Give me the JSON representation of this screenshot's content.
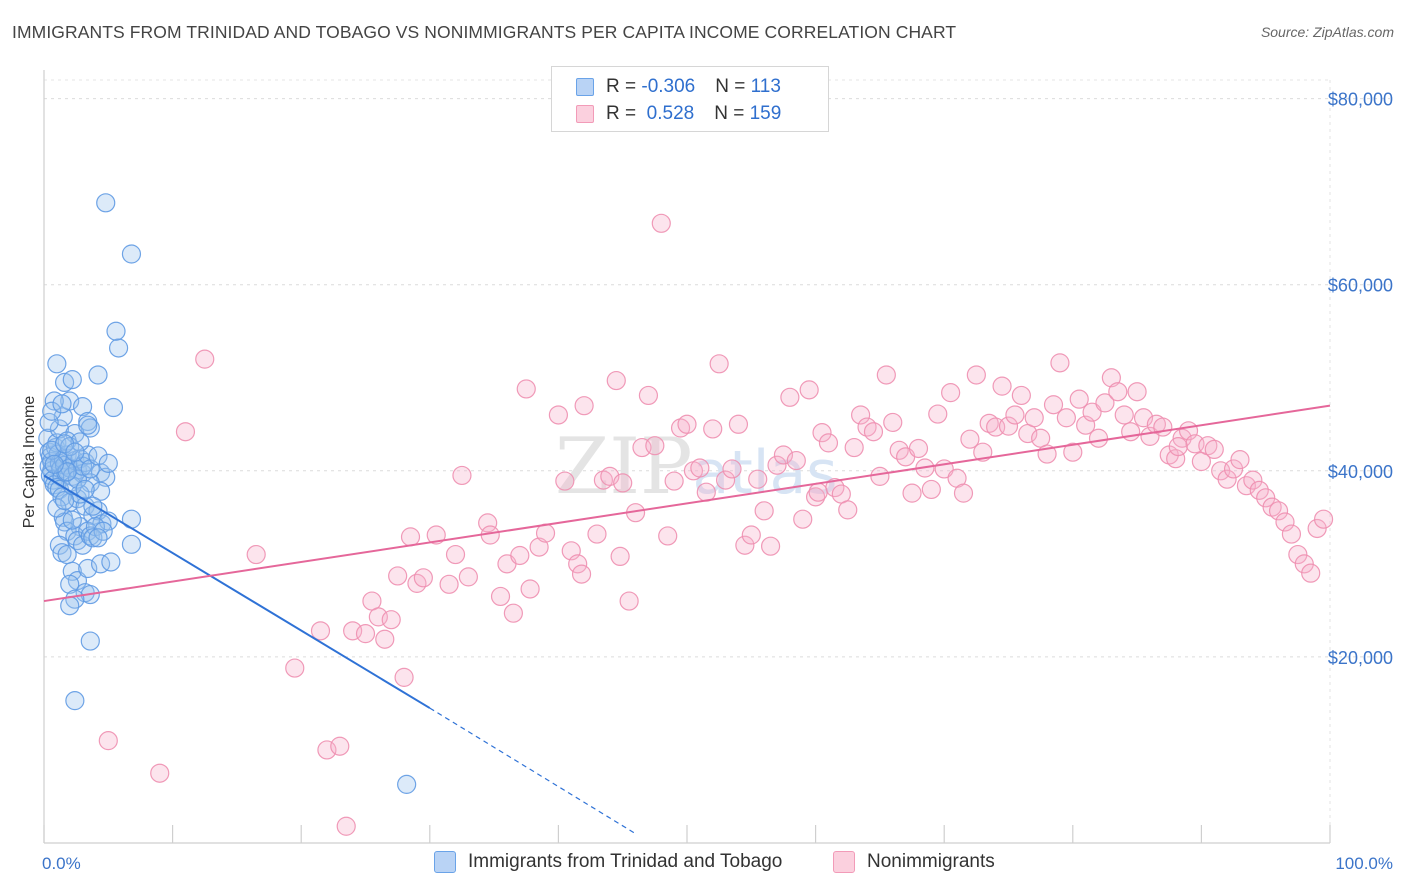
{
  "title": "IMMIGRANTS FROM TRINIDAD AND TOBAGO VS NONIMMIGRANTS PER CAPITA INCOME CORRELATION CHART",
  "source": "Source: ZipAtlas.com",
  "colors": {
    "blue": "#6aa3e8",
    "blue_line": "#2f72d6",
    "pink": "#f29bb8",
    "pink_line": "#e5679a",
    "axis_text": "#3b74c9"
  },
  "legend": [
    {
      "r_label": "R = ",
      "r_value": "-0.306",
      "n_label": "N = ",
      "n_value": "113"
    },
    {
      "r_label": "R = ",
      "r_value": " 0.528",
      "n_label": "N = ",
      "n_value": "159"
    }
  ],
  "chart_data": {
    "type": "scatter",
    "title": "IMMIGRANTS FROM TRINIDAD AND TOBAGO VS NONIMMIGRANTS PER CAPITA INCOME CORRELATION CHART",
    "xlabel": "",
    "ylabel": "Per Capita Income",
    "xlim": [
      0,
      100
    ],
    "ylim": [
      0,
      82000
    ],
    "x_tick_labels": [
      "0.0%",
      "100.0%"
    ],
    "y_ticks": [
      20000,
      40000,
      60000,
      80000
    ],
    "y_tick_labels": [
      "$20,000",
      "$40,000",
      "$60,000",
      "$80,000"
    ],
    "grid": true,
    "legend_position": "top-center",
    "series": [
      {
        "name": "Immigrants from Trinidad and Tobago",
        "color": "#6aa3e8",
        "trend": {
          "x0": 0,
          "y0": 39500,
          "x1": 30,
          "y1": 14500,
          "dash_to_x": 46,
          "dash_to_y": 1000
        },
        "points": [
          [
            0.3,
            43500
          ],
          [
            0.4,
            42000
          ],
          [
            0.5,
            41500
          ],
          [
            0.4,
            40500
          ],
          [
            0.6,
            40000
          ],
          [
            0.5,
            39500
          ],
          [
            0.7,
            39000
          ],
          [
            0.8,
            38500
          ],
          [
            0.6,
            41000
          ],
          [
            0.9,
            42500
          ],
          [
            1.0,
            43000
          ],
          [
            1.1,
            41800
          ],
          [
            1.2,
            40800
          ],
          [
            1.3,
            40200
          ],
          [
            1.4,
            39300
          ],
          [
            1.0,
            38200
          ],
          [
            1.5,
            41200
          ],
          [
            1.6,
            40600
          ],
          [
            1.7,
            39800
          ],
          [
            1.8,
            41700
          ],
          [
            2.0,
            40300
          ],
          [
            2.2,
            39400
          ],
          [
            2.4,
            41100
          ],
          [
            2.6,
            40100
          ],
          [
            2.8,
            41300
          ],
          [
            3.0,
            39700
          ],
          [
            3.2,
            40900
          ],
          [
            1.2,
            44500
          ],
          [
            1.5,
            45800
          ],
          [
            2.0,
            47500
          ],
          [
            0.8,
            47500
          ],
          [
            1.0,
            51500
          ],
          [
            1.6,
            49500
          ],
          [
            2.2,
            49800
          ],
          [
            3.0,
            46900
          ],
          [
            3.4,
            45300
          ],
          [
            3.6,
            44600
          ],
          [
            2.4,
            44000
          ],
          [
            1.8,
            43200
          ],
          [
            0.6,
            42200
          ],
          [
            1.2,
            38000
          ],
          [
            1.4,
            37200
          ],
          [
            2.0,
            36600
          ],
          [
            2.6,
            37000
          ],
          [
            3.2,
            36200
          ],
          [
            3.8,
            35200
          ],
          [
            4.2,
            35700
          ],
          [
            4.5,
            34300
          ],
          [
            5.0,
            34600
          ],
          [
            2.8,
            34000
          ],
          [
            1.5,
            35000
          ],
          [
            1.6,
            34500
          ],
          [
            1.8,
            33500
          ],
          [
            2.4,
            33000
          ],
          [
            2.6,
            32500
          ],
          [
            3.0,
            32000
          ],
          [
            3.4,
            33500
          ],
          [
            3.6,
            33000
          ],
          [
            4.0,
            34000
          ],
          [
            3.8,
            32800
          ],
          [
            1.2,
            32000
          ],
          [
            1.4,
            31200
          ],
          [
            1.8,
            31000
          ],
          [
            2.2,
            29200
          ],
          [
            2.6,
            28200
          ],
          [
            2.0,
            27800
          ],
          [
            3.2,
            26900
          ],
          [
            3.6,
            26700
          ],
          [
            2.4,
            26200
          ],
          [
            2.0,
            25500
          ],
          [
            3.4,
            29500
          ],
          [
            4.4,
            30000
          ],
          [
            5.2,
            30200
          ],
          [
            6.8,
            34800
          ],
          [
            6.8,
            32100
          ],
          [
            3.6,
            21700
          ],
          [
            2.4,
            15300
          ],
          [
            4.2,
            50300
          ],
          [
            5.4,
            46800
          ],
          [
            3.4,
            44900
          ],
          [
            4.4,
            39800
          ],
          [
            4.8,
            39300
          ],
          [
            3.6,
            38700
          ],
          [
            4.4,
            37800
          ],
          [
            2.8,
            37500
          ],
          [
            3.8,
            36200
          ],
          [
            4.6,
            33500
          ],
          [
            4.2,
            32800
          ],
          [
            5.8,
            53200
          ],
          [
            5.6,
            55000
          ],
          [
            4.8,
            68800
          ],
          [
            6.8,
            63300
          ],
          [
            28.2,
            6300
          ],
          [
            1.0,
            36000
          ],
          [
            1.6,
            36800
          ],
          [
            2.2,
            38400
          ],
          [
            2.6,
            39100
          ],
          [
            3.0,
            40500
          ],
          [
            3.4,
            41700
          ],
          [
            2.0,
            42600
          ],
          [
            2.8,
            43100
          ],
          [
            0.4,
            45200
          ],
          [
            0.6,
            46400
          ],
          [
            1.4,
            47200
          ],
          [
            3.2,
            38000
          ],
          [
            2.2,
            34700
          ],
          [
            1.8,
            39900
          ],
          [
            0.8,
            40700
          ],
          [
            1.6,
            42900
          ],
          [
            2.4,
            42000
          ],
          [
            3.6,
            40200
          ],
          [
            4.2,
            41600
          ],
          [
            5.0,
            40800
          ]
        ]
      },
      {
        "name": "Nonimmigrants",
        "color": "#f29bb8",
        "trend": {
          "x0": 0,
          "y0": 26000,
          "x1": 100,
          "y1": 47000
        },
        "points": [
          [
            5.0,
            11000
          ],
          [
            9.0,
            7500
          ],
          [
            11.0,
            44200
          ],
          [
            12.5,
            52000
          ],
          [
            16.5,
            31000
          ],
          [
            19.5,
            18800
          ],
          [
            21.5,
            22800
          ],
          [
            22.0,
            10000
          ],
          [
            23.0,
            10400
          ],
          [
            23.5,
            1800
          ],
          [
            24.0,
            22800
          ],
          [
            25.0,
            22500
          ],
          [
            25.5,
            26000
          ],
          [
            26.0,
            24300
          ],
          [
            26.5,
            21900
          ],
          [
            27.0,
            24000
          ],
          [
            27.5,
            28700
          ],
          [
            28.0,
            17800
          ],
          [
            28.5,
            32900
          ],
          [
            29.0,
            27900
          ],
          [
            29.5,
            28500
          ],
          [
            30.5,
            33100
          ],
          [
            31.5,
            27800
          ],
          [
            32.0,
            31000
          ],
          [
            32.5,
            39500
          ],
          [
            33.0,
            28600
          ],
          [
            34.5,
            34400
          ],
          [
            34.7,
            33100
          ],
          [
            35.5,
            26500
          ],
          [
            36.0,
            30000
          ],
          [
            36.5,
            24700
          ],
          [
            37.0,
            30900
          ],
          [
            37.5,
            48800
          ],
          [
            37.8,
            27300
          ],
          [
            38.5,
            31800
          ],
          [
            39.0,
            33300
          ],
          [
            40.0,
            46000
          ],
          [
            40.5,
            38900
          ],
          [
            41.0,
            31400
          ],
          [
            41.5,
            30000
          ],
          [
            41.8,
            28900
          ],
          [
            42.0,
            47000
          ],
          [
            43.0,
            33200
          ],
          [
            43.5,
            39000
          ],
          [
            44.0,
            39400
          ],
          [
            44.5,
            49700
          ],
          [
            44.8,
            30800
          ],
          [
            45.0,
            38700
          ],
          [
            45.5,
            26000
          ],
          [
            46.0,
            35500
          ],
          [
            46.5,
            42500
          ],
          [
            47.0,
            48100
          ],
          [
            47.5,
            42700
          ],
          [
            48.0,
            66600
          ],
          [
            48.5,
            33000
          ],
          [
            49.0,
            38900
          ],
          [
            49.5,
            44600
          ],
          [
            50.0,
            45000
          ],
          [
            50.5,
            40000
          ],
          [
            51.0,
            40300
          ],
          [
            51.5,
            37700
          ],
          [
            52.0,
            44500
          ],
          [
            52.5,
            51500
          ],
          [
            53.0,
            39000
          ],
          [
            53.5,
            40200
          ],
          [
            54.0,
            45000
          ],
          [
            54.5,
            32000
          ],
          [
            55.0,
            33100
          ],
          [
            55.5,
            39100
          ],
          [
            56.0,
            35700
          ],
          [
            56.5,
            31900
          ],
          [
            57.0,
            40600
          ],
          [
            57.5,
            41700
          ],
          [
            58.0,
            47900
          ],
          [
            58.5,
            41100
          ],
          [
            59.0,
            34800
          ],
          [
            59.5,
            48700
          ],
          [
            60.0,
            37200
          ],
          [
            60.5,
            44100
          ],
          [
            61.0,
            43000
          ],
          [
            61.5,
            38200
          ],
          [
            62.0,
            37500
          ],
          [
            62.5,
            35800
          ],
          [
            63.0,
            42500
          ],
          [
            63.5,
            46000
          ],
          [
            64.0,
            44700
          ],
          [
            64.5,
            44200
          ],
          [
            65.0,
            39400
          ],
          [
            65.5,
            50300
          ],
          [
            66.0,
            45200
          ],
          [
            66.5,
            42200
          ],
          [
            67.0,
            41500
          ],
          [
            67.5,
            37600
          ],
          [
            68.0,
            42400
          ],
          [
            68.5,
            40300
          ],
          [
            69.0,
            38000
          ],
          [
            69.5,
            46100
          ],
          [
            70.0,
            40200
          ],
          [
            70.5,
            48400
          ],
          [
            71.0,
            39200
          ],
          [
            71.5,
            37600
          ],
          [
            72.0,
            43400
          ],
          [
            72.5,
            50300
          ],
          [
            73.0,
            42000
          ],
          [
            73.5,
            45100
          ],
          [
            74.0,
            44700
          ],
          [
            74.5,
            49100
          ],
          [
            75.0,
            44800
          ],
          [
            75.5,
            46000
          ],
          [
            76.0,
            48100
          ],
          [
            76.5,
            44000
          ],
          [
            77.0,
            45700
          ],
          [
            77.5,
            43500
          ],
          [
            78.0,
            41800
          ],
          [
            78.5,
            47100
          ],
          [
            79.0,
            51600
          ],
          [
            79.5,
            45700
          ],
          [
            80.0,
            42000
          ],
          [
            80.5,
            47700
          ],
          [
            81.0,
            44900
          ],
          [
            81.5,
            46300
          ],
          [
            82.0,
            43500
          ],
          [
            82.5,
            47300
          ],
          [
            83.0,
            50000
          ],
          [
            83.5,
            48500
          ],
          [
            84.0,
            46000
          ],
          [
            84.5,
            44200
          ],
          [
            85.0,
            48500
          ],
          [
            85.5,
            45700
          ],
          [
            86.0,
            43700
          ],
          [
            86.5,
            45000
          ],
          [
            87.0,
            44700
          ],
          [
            87.5,
            41700
          ],
          [
            88.0,
            41300
          ],
          [
            88.5,
            43500
          ],
          [
            89.0,
            44300
          ],
          [
            89.5,
            42900
          ],
          [
            90.0,
            41000
          ],
          [
            90.5,
            42700
          ],
          [
            91.0,
            42300
          ],
          [
            91.5,
            40000
          ],
          [
            92.0,
            39100
          ],
          [
            92.5,
            40200
          ],
          [
            93.0,
            41200
          ],
          [
            93.5,
            38400
          ],
          [
            94.0,
            39000
          ],
          [
            94.5,
            37900
          ],
          [
            95.0,
            37100
          ],
          [
            95.5,
            36100
          ],
          [
            96.0,
            35700
          ],
          [
            96.5,
            34500
          ],
          [
            97.0,
            33200
          ],
          [
            97.5,
            31000
          ],
          [
            98.0,
            30000
          ],
          [
            98.5,
            29000
          ],
          [
            99.0,
            33800
          ],
          [
            99.5,
            34800
          ],
          [
            60.2,
            37700
          ],
          [
            88.2,
            42600
          ]
        ]
      }
    ]
  },
  "bottom_legend": [
    {
      "label": "Immigrants from Trinidad and Tobago"
    },
    {
      "label": "Nonimmigrants"
    }
  ],
  "watermark": "ZIPatlas"
}
